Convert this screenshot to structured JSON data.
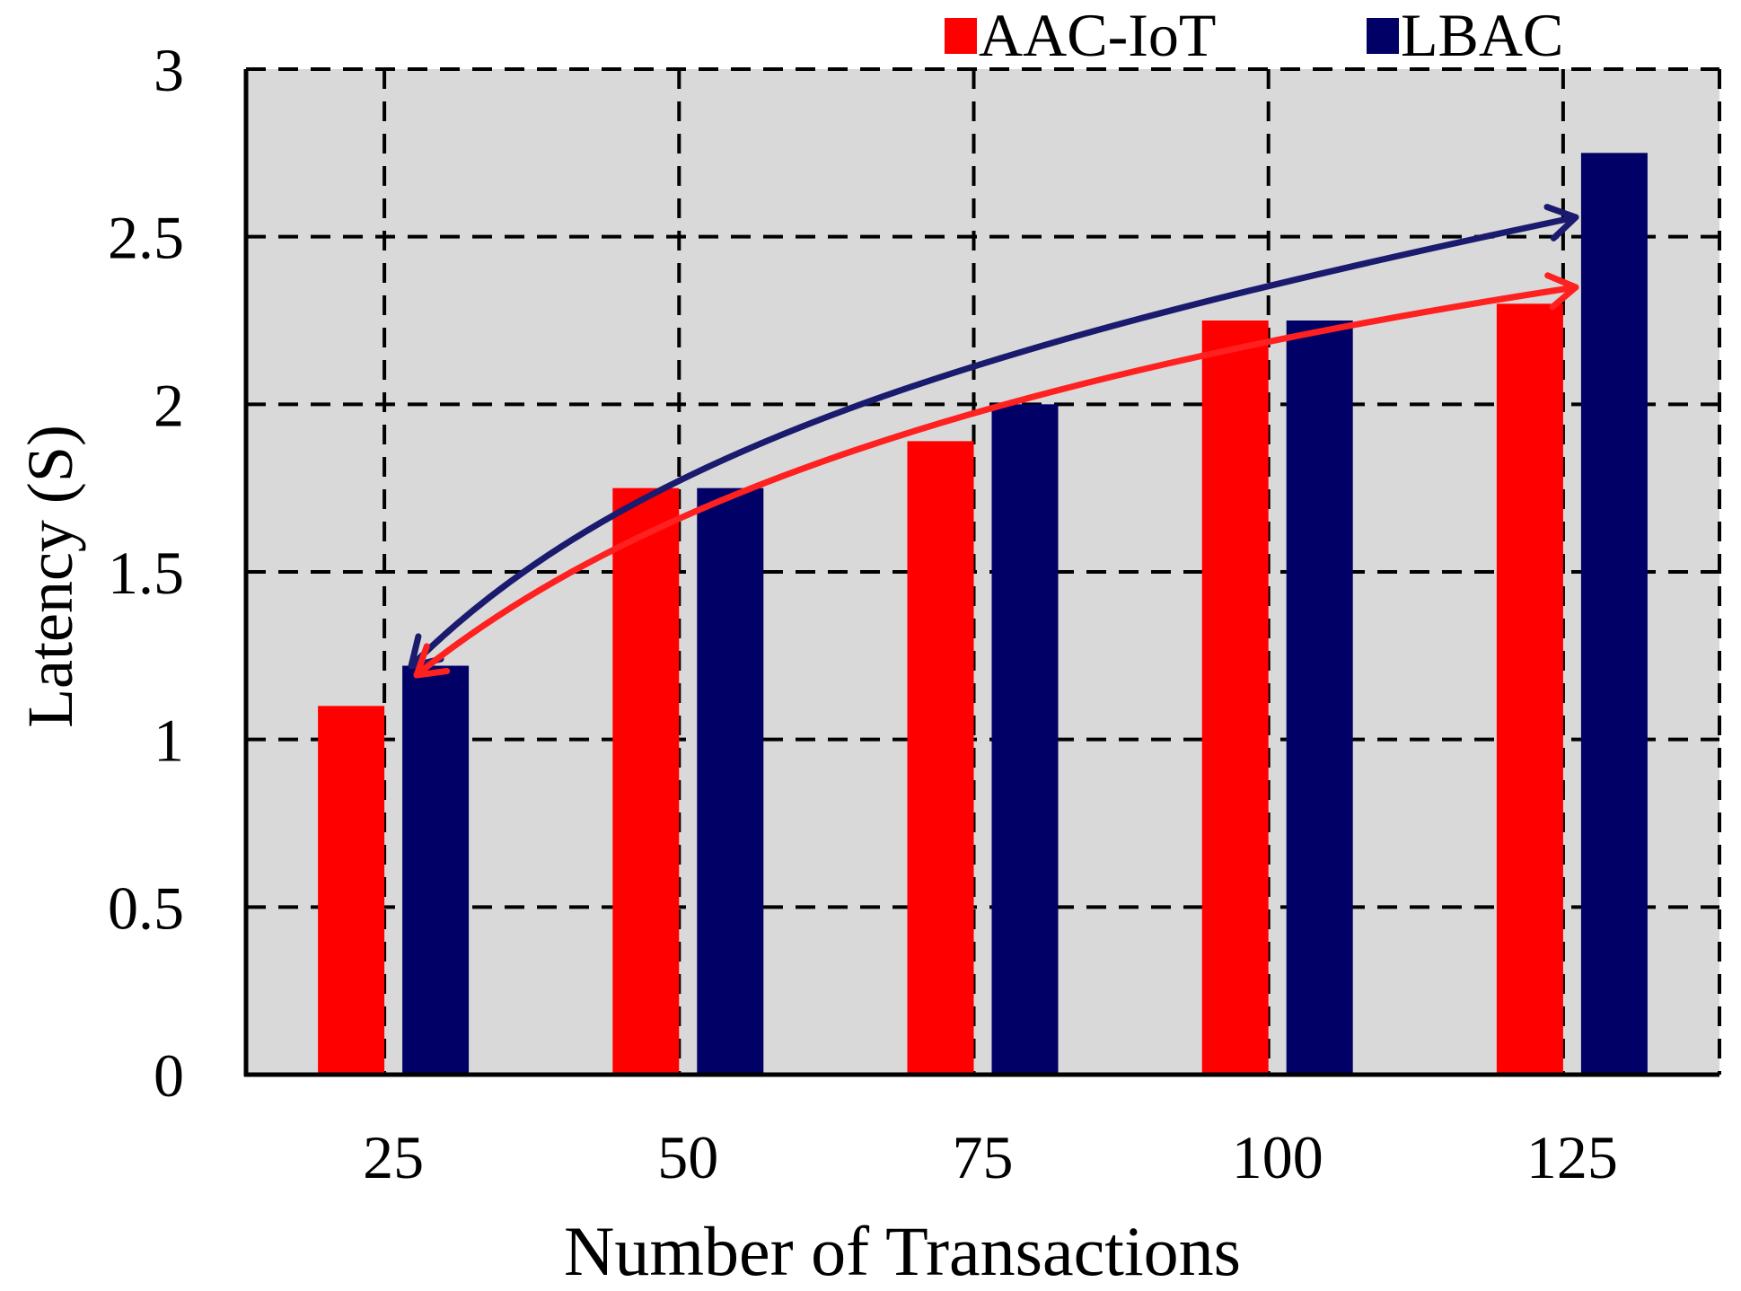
{
  "colors": {
    "plot_background": "#d9d9d9",
    "axis": "#000000",
    "grid": "#000000",
    "page_background": "#ffffff"
  },
  "chart_data": {
    "type": "bar",
    "title": "",
    "xlabel": "Number of Transactions",
    "ylabel": "Latency (S)",
    "categories": [
      "25",
      "50",
      "75",
      "100",
      "125"
    ],
    "ylim": [
      0,
      3
    ],
    "yticks": [
      "0",
      "0.5",
      "1",
      "1.5",
      "2",
      "2.5",
      "3"
    ],
    "grid": true,
    "grid_style": "dashed",
    "legend_position": "top-right",
    "series": [
      {
        "name": "AAC-IoT",
        "color": "#ff0000",
        "values": [
          1.1,
          1.75,
          1.89,
          2.25,
          2.3
        ]
      },
      {
        "name": "LBAC",
        "color": "#000066",
        "values": [
          1.22,
          1.75,
          2.0,
          2.25,
          2.75
        ]
      }
    ],
    "trend_arrows": [
      {
        "series": "LBAC",
        "color": "#1a1a6e",
        "style": "double-headed curved arrow"
      },
      {
        "series": "AAC-IoT",
        "color": "#ff2020",
        "style": "double-headed curved arrow"
      }
    ]
  }
}
